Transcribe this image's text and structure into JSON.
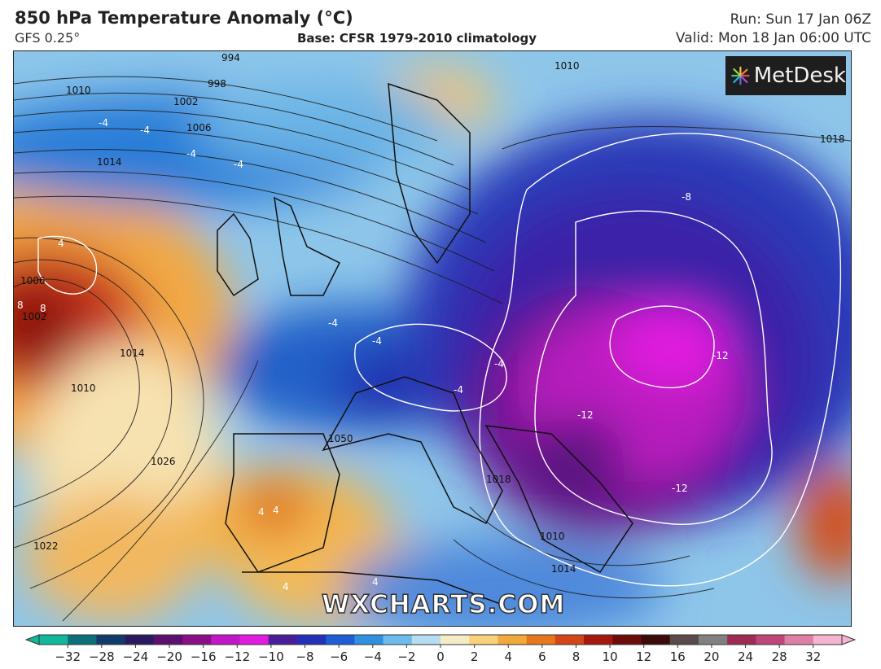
{
  "header": {
    "title": "850 hPa Temperature Anomaly (°C)",
    "model": "GFS 0.25°",
    "base": "Base: CFSR 1979-2010 climatology",
    "run": "Run: Sun 17 Jan 06Z",
    "valid": "Valid: Mon 18 Jan 06:00 UTC"
  },
  "logo": {
    "text": "MetDesk",
    "icon": "starburst-icon"
  },
  "watermark": "WXCHARTS.COM",
  "map": {
    "isobar_labels": [
      "994",
      "998",
      "1002",
      "1006",
      "1010",
      "1014",
      "1010",
      "1018",
      "1006",
      "1002",
      "1014",
      "1010",
      "1026",
      "1022",
      "1050",
      "1018",
      "1010",
      "1014"
    ],
    "anomaly_labels": [
      "-4",
      "-4",
      "-4",
      "-4",
      "4",
      "4",
      "8",
      "8",
      "-8",
      "-4",
      "-4",
      "-4",
      "-4",
      "-12",
      "-12",
      "-12",
      "4",
      "4",
      "4"
    ]
  },
  "colorbar": {
    "ticks": [
      "−32",
      "−28",
      "−24",
      "−20",
      "−16",
      "−12",
      "−10",
      "−8",
      "−6",
      "−4",
      "−2",
      "0",
      "2",
      "4",
      "6",
      "8",
      "10",
      "12",
      "16",
      "20",
      "24",
      "28",
      "32"
    ],
    "colors": [
      "#10b89a",
      "#0d6f7a",
      "#123b6b",
      "#2c1a60",
      "#5b0f6e",
      "#8a0e86",
      "#c117c6",
      "#e21be1",
      "#4a1d99",
      "#2431b7",
      "#1d5ed6",
      "#2f8fe0",
      "#6dbbea",
      "#b6dcf2",
      "#f6ecc4",
      "#f7d27a",
      "#f0a93a",
      "#e6771d",
      "#d24617",
      "#a6180f",
      "#6e0b0b",
      "#3b0a0a",
      "#5a4a4a",
      "#808080",
      "#9d2b52",
      "#c0467a",
      "#de7fa6",
      "#f5b4cf"
    ]
  }
}
